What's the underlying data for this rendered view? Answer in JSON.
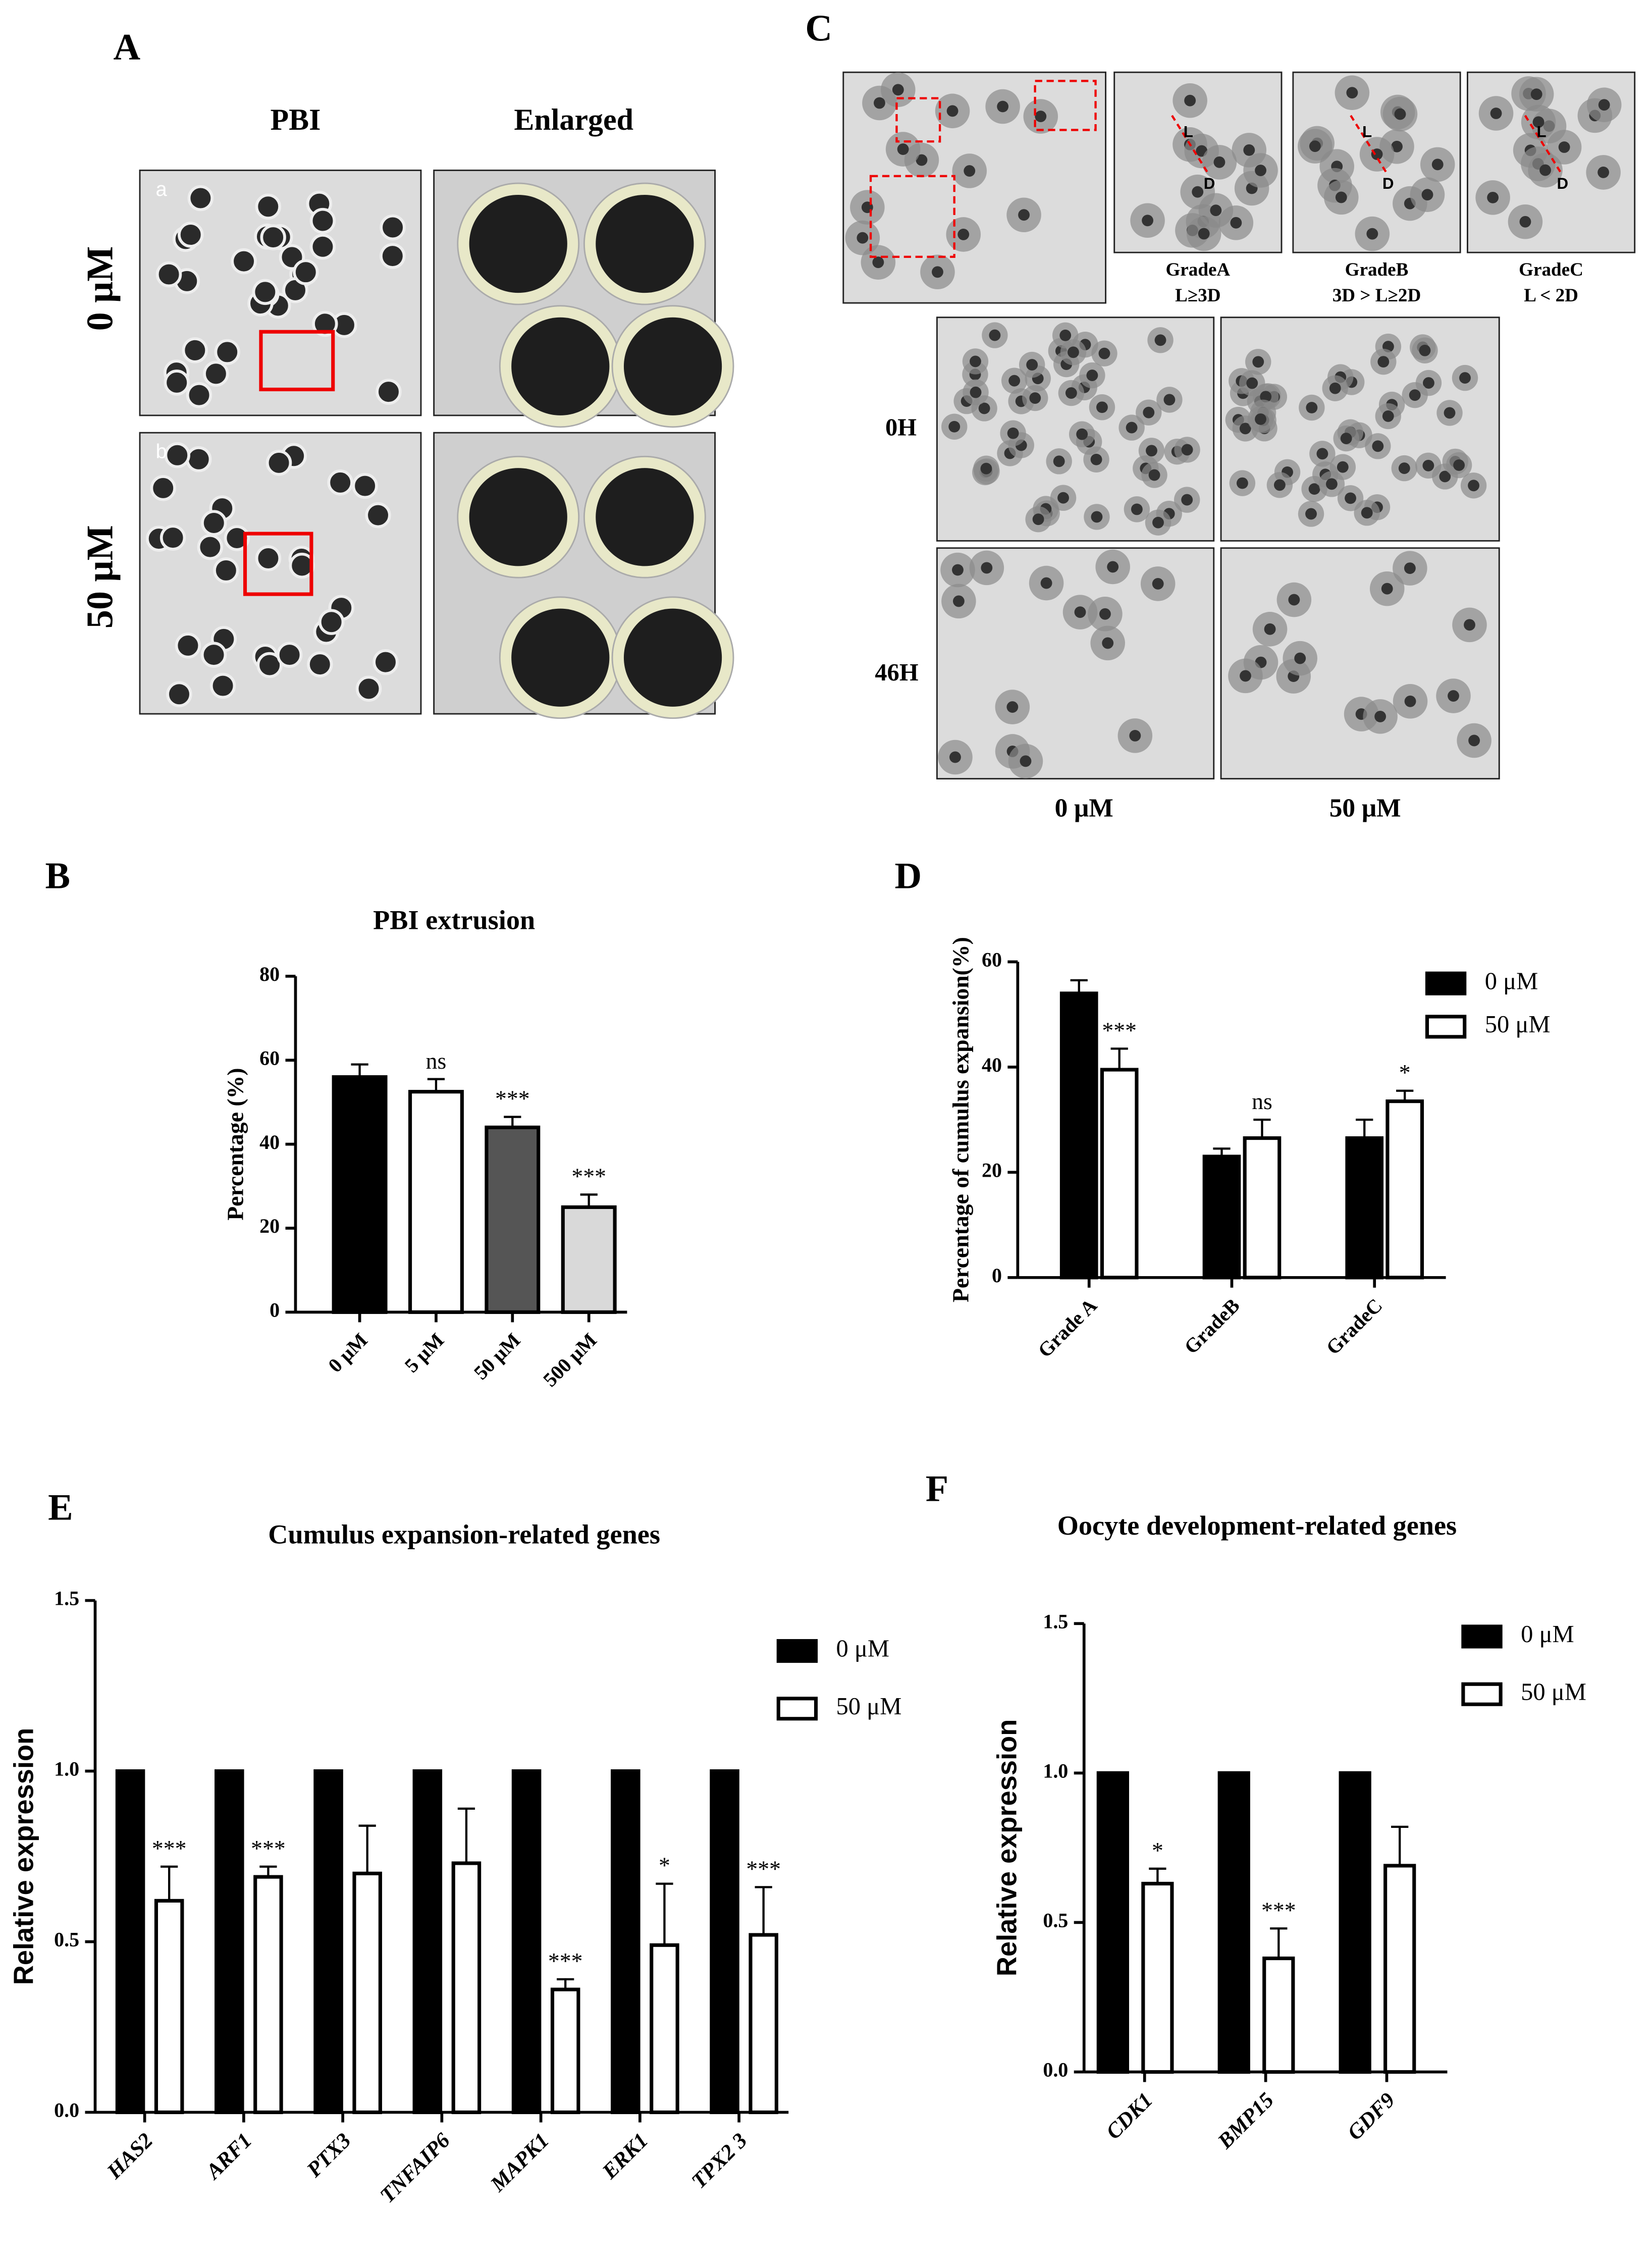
{
  "figure": {
    "A": {
      "label": "A",
      "columns": [
        "PBI",
        "Enlarged"
      ],
      "rows": [
        "0 μM",
        "50 μM"
      ],
      "insets": [
        "a",
        "b"
      ]
    },
    "C": {
      "label": "C",
      "grades": [
        {
          "name": "GradeA",
          "rule": "L≥3D"
        },
        {
          "name": "GradeB",
          "rule": "3D > L≥2D"
        },
        {
          "name": "GradeC",
          "rule": "L < 2D"
        }
      ],
      "marks": [
        "L",
        "D"
      ],
      "rows": [
        "0H",
        "46H"
      ],
      "columns": [
        "0 μM",
        "50 μM"
      ]
    }
  },
  "chart_data": [
    {
      "type": "bar",
      "panel": "B",
      "title": "PBI extrusion",
      "y_label": "Percentage (%)",
      "categories": [
        "0 μM",
        "5 μM",
        "50 μM",
        "500 μM"
      ],
      "values": [
        56,
        52.5,
        44,
        25
      ],
      "errors": [
        3,
        3,
        2.5,
        3
      ],
      "colors": [
        "#000000",
        "#ffffff",
        "#555555",
        "#d9d9d9"
      ],
      "annotations": [
        null,
        "ns",
        "***",
        "***"
      ],
      "ylim": [
        0,
        80
      ],
      "yticks": [
        0,
        20,
        40,
        60,
        80
      ]
    },
    {
      "type": "bar",
      "panel": "D",
      "y_label": "Percentage of cumulus expansion(%)",
      "categories": [
        "Grade A",
        "GradeB",
        "GradeC"
      ],
      "series": [
        {
          "name": "0 μM",
          "color": "#000000",
          "values": [
            54,
            23,
            26.5
          ],
          "errors": [
            2.5,
            1.5,
            3.5
          ],
          "annotations": [
            null,
            null,
            null
          ]
        },
        {
          "name": "50 μM",
          "color": "#ffffff",
          "values": [
            39.5,
            26.5,
            33.5
          ],
          "errors": [
            4,
            3.5,
            2
          ],
          "annotations": [
            "***",
            "ns",
            "*"
          ]
        }
      ],
      "ylim": [
        0,
        60
      ],
      "yticks": [
        0,
        20,
        40,
        60
      ]
    },
    {
      "type": "bar",
      "panel": "E",
      "title": "Cumulus expansion-related genes",
      "y_label": "Relative  expression",
      "categories": [
        "HAS2",
        "ARF1",
        "PTX3",
        "TNFAIP6",
        "MAPK1",
        "ERK1",
        "TPX2 3"
      ],
      "series": [
        {
          "name": "0 μM",
          "color": "#000000",
          "values": [
            1,
            1,
            1,
            1,
            1,
            1,
            1
          ],
          "errors": [
            null,
            null,
            null,
            null,
            null,
            null,
            null
          ],
          "annotations": [
            null,
            null,
            null,
            null,
            null,
            null,
            null
          ]
        },
        {
          "name": "50 μM",
          "color": "#ffffff",
          "values": [
            0.62,
            0.69,
            0.7,
            0.73,
            0.36,
            0.49,
            0.52
          ],
          "errors": [
            0.1,
            0.03,
            0.14,
            0.16,
            0.03,
            0.18,
            0.14
          ],
          "annotations": [
            "***",
            "***",
            null,
            null,
            "***",
            "*",
            "***"
          ]
        }
      ],
      "ylim": [
        0,
        1.5
      ],
      "yticks": [
        {
          "value": 0,
          "label": "0.0"
        },
        0.5,
        {
          "value": 1,
          "label": "1.0"
        },
        1.5
      ]
    },
    {
      "type": "bar",
      "panel": "F",
      "title": "Oocyte development-related genes",
      "y_label": "Relative  expression",
      "categories": [
        "CDK1",
        "BMP15",
        "GDF9"
      ],
      "series": [
        {
          "name": "0 μM",
          "color": "#000000",
          "values": [
            1,
            1,
            1
          ],
          "errors": [
            null,
            null,
            null
          ],
          "annotations": [
            null,
            null,
            null
          ]
        },
        {
          "name": "50 μM",
          "color": "#ffffff",
          "values": [
            0.63,
            0.38,
            0.69
          ],
          "errors": [
            0.05,
            0.1,
            0.13
          ],
          "annotations": [
            "*",
            "***",
            null
          ]
        }
      ],
      "ylim": [
        0,
        1.5
      ],
      "yticks": [
        {
          "value": 0,
          "label": "0.0"
        },
        0.5,
        {
          "value": 1,
          "label": "1.0"
        },
        1.5
      ]
    }
  ]
}
